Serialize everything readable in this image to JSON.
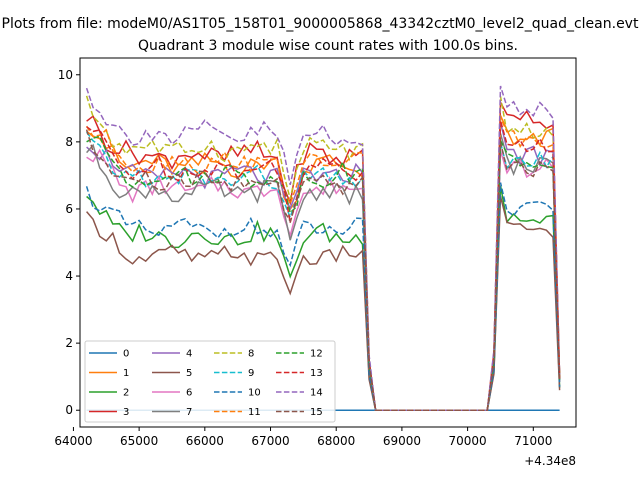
{
  "suptitle": "Plots from file: modeM0/AS1T05_158T01_9000005868_43342cztM0_level2_quad_clean.evt",
  "chart_data": {
    "type": "line",
    "title": "Quadrant 3 module wise count rates with 100.0s bins.",
    "xlabel": "",
    "ylabel": "",
    "x_offset_label": "+4.34e8",
    "xlim": [
      64100,
      71650
    ],
    "ylim": [
      -0.5,
      10.5
    ],
    "x_ticks": [
      64000,
      65000,
      66000,
      67000,
      68000,
      69000,
      70000,
      71000
    ],
    "x_tick_labels": [
      "64000",
      "65000",
      "66000",
      "67000",
      "68000",
      "69000",
      "70000",
      "71000"
    ],
    "y_ticks": [
      0,
      2,
      4,
      6,
      8,
      10
    ],
    "y_tick_labels": [
      "0",
      "2",
      "4",
      "6",
      "8",
      "10"
    ],
    "legend_position": "lower-left",
    "legend_columns": 4,
    "gaps": [
      [
        68600,
        70300
      ]
    ],
    "series": [
      {
        "name": "0",
        "color": "#1f77b4",
        "dash": "solid",
        "base": 0,
        "seg2": 0,
        "amp": 0
      },
      {
        "name": "1",
        "color": "#ff7f0e",
        "dash": "solid",
        "base": 7.3,
        "seg2": 8.2,
        "amp": 0.3
      },
      {
        "name": "2",
        "color": "#2ca02c",
        "dash": "solid",
        "base": 5.2,
        "seg2": 5.7,
        "amp": 0.3
      },
      {
        "name": "3",
        "color": "#d62728",
        "dash": "solid",
        "base": 7.6,
        "seg2": 8.6,
        "amp": 0.35
      },
      {
        "name": "4",
        "color": "#9467bd",
        "dash": "solid",
        "base": 7.0,
        "seg2": 7.6,
        "amp": 0.3
      },
      {
        "name": "5",
        "color": "#8c564b",
        "dash": "solid",
        "base": 4.6,
        "seg2": 5.4,
        "amp": 0.25
      },
      {
        "name": "6",
        "color": "#e377c2",
        "dash": "solid",
        "base": 6.6,
        "seg2": 7.2,
        "amp": 0.3
      },
      {
        "name": "7",
        "color": "#7f7f7f",
        "dash": "solid",
        "base": 6.5,
        "seg2": 7.3,
        "amp": 0.3
      },
      {
        "name": "8",
        "color": "#bcbd22",
        "dash": "dashed",
        "base": 7.8,
        "seg2": 8.4,
        "amp": 0.3
      },
      {
        "name": "9",
        "color": "#17becf",
        "dash": "dashed",
        "base": 6.9,
        "seg2": 7.4,
        "amp": 0.3
      },
      {
        "name": "10",
        "color": "#1f77b4",
        "dash": "dashed",
        "base": 5.4,
        "seg2": 6.0,
        "amp": 0.25
      },
      {
        "name": "11",
        "color": "#ff7f0e",
        "dash": "dashed",
        "base": 7.4,
        "seg2": 8.1,
        "amp": 0.3
      },
      {
        "name": "12",
        "color": "#2ca02c",
        "dash": "dashed",
        "base": 7.0,
        "seg2": 7.5,
        "amp": 0.3
      },
      {
        "name": "13",
        "color": "#d62728",
        "dash": "dashed",
        "base": 7.2,
        "seg2": 7.9,
        "amp": 0.3
      },
      {
        "name": "14",
        "color": "#9467bd",
        "dash": "dashed",
        "base": 8.2,
        "seg2": 8.9,
        "amp": 0.35
      },
      {
        "name": "15",
        "color": "#8c564b",
        "dash": "dashed",
        "base": 6.8,
        "seg2": 7.2,
        "amp": 0.3
      }
    ]
  }
}
